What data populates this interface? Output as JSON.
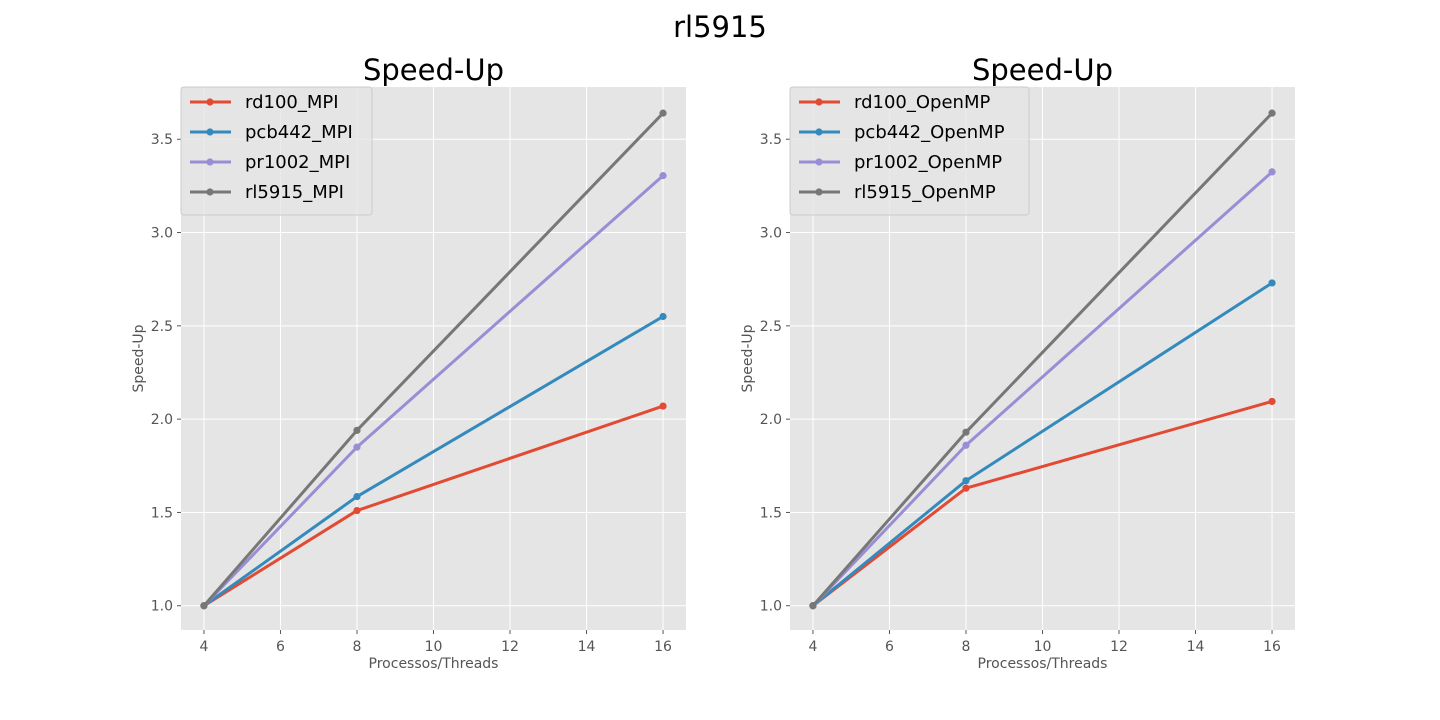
{
  "suptitle": "rl5915",
  "colors": {
    "background": "#E5E5E5",
    "grid": "#FFFFFF",
    "series": [
      "#E24A33",
      "#348ABD",
      "#988ED5",
      "#777777"
    ]
  },
  "chart_data": [
    {
      "type": "line",
      "title": "Speed-Up",
      "xlabel": "Processos/Threads",
      "ylabel": "Speed-Up",
      "x": [
        4,
        8,
        16
      ],
      "xticks": [
        4,
        6,
        8,
        10,
        12,
        14,
        16
      ],
      "yticks": [
        1.0,
        1.5,
        2.0,
        2.5,
        3.0,
        3.5
      ],
      "xlim": [
        3.4,
        16.6
      ],
      "ylim": [
        0.87,
        3.78
      ],
      "grid": true,
      "legend": "top-left",
      "series": [
        {
          "name": "rd100_MPI",
          "values": [
            1.0,
            1.51,
            2.07
          ]
        },
        {
          "name": "pcb442_MPI",
          "values": [
            1.0,
            1.585,
            2.55
          ]
        },
        {
          "name": "pr1002_MPI",
          "values": [
            1.0,
            1.85,
            3.305
          ]
        },
        {
          "name": "rl5915_MPI",
          "values": [
            1.0,
            1.94,
            3.64
          ]
        }
      ]
    },
    {
      "type": "line",
      "title": "Speed-Up",
      "xlabel": "Processos/Threads",
      "ylabel": "Speed-Up",
      "x": [
        4,
        8,
        16
      ],
      "xticks": [
        4,
        6,
        8,
        10,
        12,
        14,
        16
      ],
      "yticks": [
        1.0,
        1.5,
        2.0,
        2.5,
        3.0,
        3.5
      ],
      "xlim": [
        3.4,
        16.6
      ],
      "ylim": [
        0.87,
        3.78
      ],
      "grid": true,
      "legend": "top-left",
      "series": [
        {
          "name": "rd100_OpenMP",
          "values": [
            1.0,
            1.63,
            2.095
          ]
        },
        {
          "name": "pcb442_OpenMP",
          "values": [
            1.0,
            1.67,
            2.73
          ]
        },
        {
          "name": "pr1002_OpenMP",
          "values": [
            1.0,
            1.86,
            3.325
          ]
        },
        {
          "name": "rl5915_OpenMP",
          "values": [
            1.0,
            1.93,
            3.64
          ]
        }
      ]
    }
  ]
}
